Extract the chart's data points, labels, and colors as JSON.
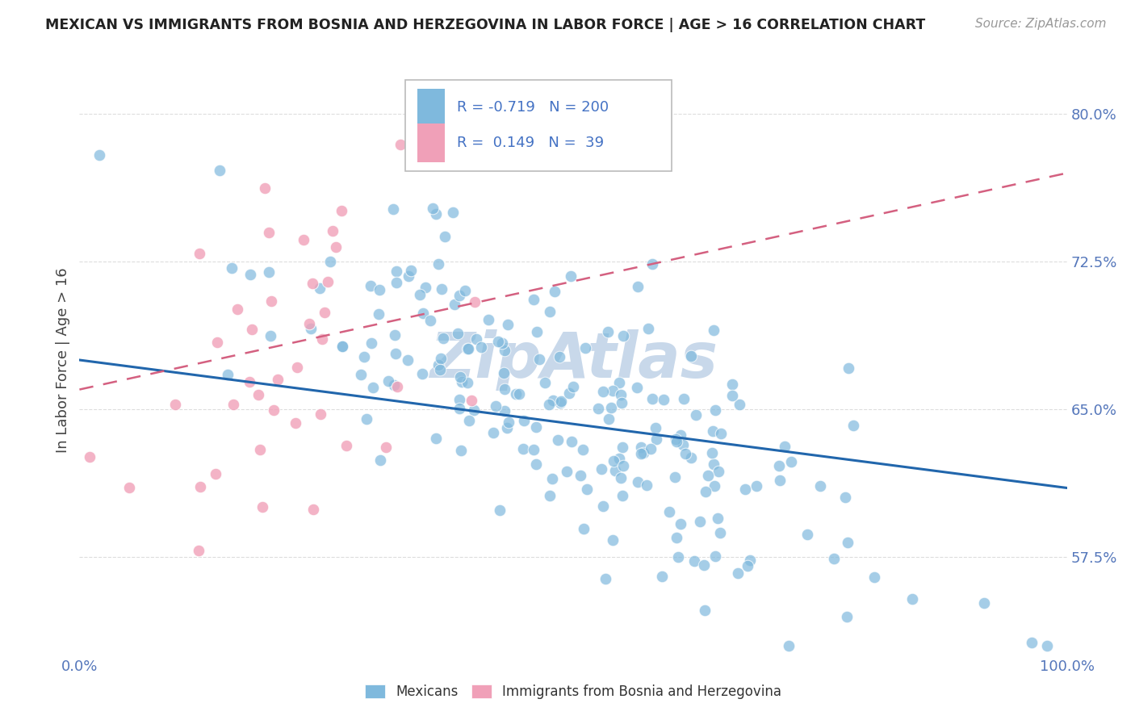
{
  "title": "MEXICAN VS IMMIGRANTS FROM BOSNIA AND HERZEGOVINA IN LABOR FORCE | AGE > 16 CORRELATION CHART",
  "source": "Source: ZipAtlas.com",
  "ylabel": "In Labor Force | Age > 16",
  "xlim": [
    0.0,
    1.0
  ],
  "ylim": [
    0.525,
    0.825
  ],
  "ytick_positions": [
    0.575,
    0.65,
    0.725,
    0.8
  ],
  "ytick_labels": [
    "57.5%",
    "65.0%",
    "72.5%",
    "80.0%"
  ],
  "xtick_positions": [
    0.0,
    1.0
  ],
  "xtick_labels": [
    "0.0%",
    "100.0%"
  ],
  "mexicans_color": "#7fb9dd",
  "bosnia_color": "#f0a0b8",
  "mexicans_line_color": "#2166ac",
  "bosnia_line_color": "#d46080",
  "watermark": "ZipAtlas",
  "watermark_color": "#c8d8ea",
  "r_mexican": -0.719,
  "r_bosnia": 0.149,
  "n_mexican": 200,
  "n_bosnia": 39,
  "grid_color": "#dddddd",
  "tick_color": "#5577bb",
  "background_color": "#ffffff",
  "mex_line_y0": 0.675,
  "mex_line_y1": 0.61,
  "bos_line_x0": 0.0,
  "bos_line_x1": 1.0,
  "bos_line_y0": 0.66,
  "bos_line_y1": 0.77,
  "legend_r1": "R = -0.719   N = 200",
  "legend_r2": "R =  0.149   N =  39",
  "legend_blue": "#7fb9dd",
  "legend_pink": "#f0a0b8",
  "legend_text_color": "#4472c4"
}
